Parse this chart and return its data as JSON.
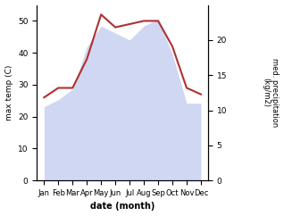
{
  "months": [
    "Jan",
    "Feb",
    "Mar",
    "Apr",
    "May",
    "Jun",
    "Jul",
    "Aug",
    "Sep",
    "Oct",
    "Nov",
    "Dec"
  ],
  "temp_max": [
    26,
    29,
    29,
    38,
    52,
    48,
    49,
    50,
    50,
    42,
    29,
    27
  ],
  "precipitation": [
    10.5,
    11.5,
    13,
    19,
    22,
    21,
    20,
    22,
    23,
    18,
    11,
    11
  ],
  "temp_color": "#b03030",
  "precip_fill_color": "#c8d0f0",
  "ylabel_left": "max temp (C)",
  "ylabel_right": "med. precipitation\n(kg/m2)",
  "xlabel": "date (month)",
  "ylim_left": [
    0,
    55
  ],
  "ylim_right": [
    0,
    25
  ],
  "yticks_left": [
    0,
    10,
    20,
    30,
    40,
    50
  ],
  "yticks_right": [
    0,
    5,
    10,
    15,
    20
  ],
  "bg_color": "#ffffff",
  "precip_scale_factor": 2.2
}
